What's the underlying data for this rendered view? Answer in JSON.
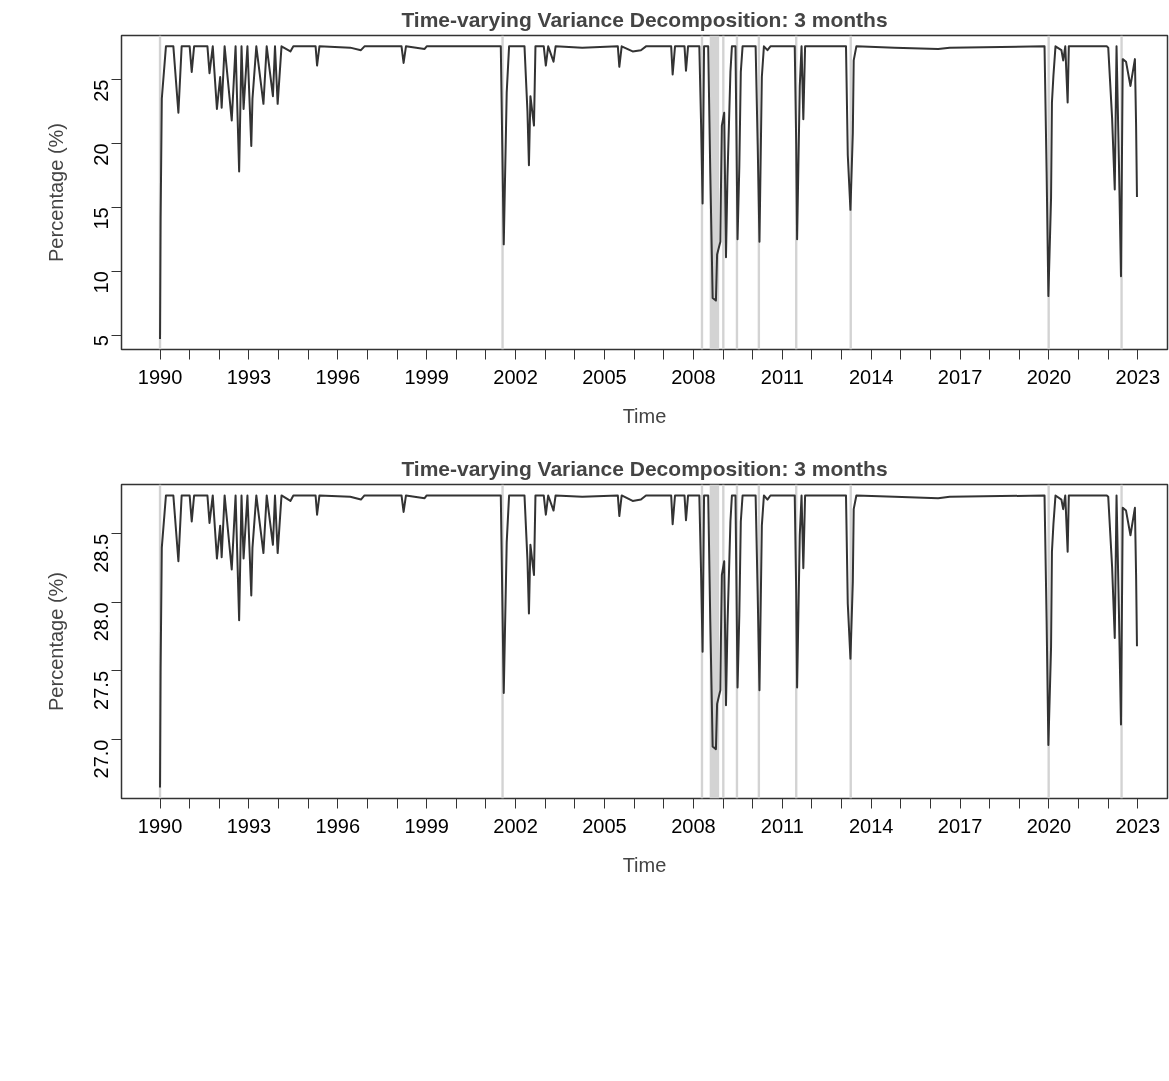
{
  "chart_data": [
    {
      "type": "line",
      "title": "Time-varying Variance Decomposition: 3 months",
      "xlabel": "Time",
      "ylabel": "Percentage (%)",
      "x": [
        1990.0,
        1990.02,
        1990.06,
        1990.2,
        1990.45,
        1990.62,
        1990.73,
        1991.0,
        1991.07,
        1991.15,
        1991.6,
        1991.67,
        1991.78,
        1991.92,
        1992.03,
        1992.08,
        1992.18,
        1992.42,
        1992.55,
        1992.67,
        1992.75,
        1992.82,
        1992.95,
        1993.08,
        1993.12,
        1993.25,
        1993.49,
        1993.6,
        1993.81,
        1993.88,
        1993.97,
        1994.1,
        1994.4,
        1994.5,
        1995.25,
        1995.3,
        1995.38,
        1996.42,
        1996.78,
        1996.9,
        1998.15,
        1998.22,
        1998.3,
        1998.93,
        1999.0,
        2001.5,
        2001.55,
        2001.6,
        2001.7,
        2001.78,
        2002.3,
        2002.4,
        2002.45,
        2002.5,
        2002.62,
        2002.67,
        2002.95,
        2003.02,
        2003.1,
        2003.28,
        2003.35,
        2004.25,
        2005.45,
        2005.5,
        2005.58,
        2005.95,
        2006.23,
        2006.4,
        2007.25,
        2007.3,
        2007.38,
        2007.7,
        2007.75,
        2007.82,
        2008.2,
        2008.26,
        2008.31,
        2008.36,
        2008.5,
        2008.57,
        2008.65,
        2008.76,
        2008.8,
        2008.91,
        2008.93,
        2008.96,
        2009.04,
        2009.1,
        2009.15,
        2009.25,
        2009.3,
        2009.42,
        2009.49,
        2009.55,
        2009.6,
        2009.66,
        2010.1,
        2010.17,
        2010.23,
        2010.31,
        2010.38,
        2010.5,
        2010.6,
        2011.42,
        2011.47,
        2011.5,
        2011.59,
        2011.65,
        2011.71,
        2011.77,
        2013.15,
        2013.21,
        2013.3,
        2013.38,
        2013.41,
        2013.5,
        2014.79,
        2016.26,
        2016.65,
        2019.85,
        2019.92,
        2019.98,
        2020.07,
        2020.1,
        2020.15,
        2020.22,
        2020.42,
        2020.48,
        2020.55,
        2020.63,
        2020.67,
        2021.95,
        2022.0,
        2022.13,
        2022.22,
        2022.28,
        2022.36,
        2022.43,
        2022.49,
        2022.6,
        2022.75,
        2022.9,
        2022.94,
        2022.97
      ],
      "series": [
        {
          "color": "#333333",
          "values": [
            4.7,
            14.1,
            23.5,
            27.6,
            27.6,
            22.4,
            27.6,
            27.6,
            25.6,
            27.6,
            27.6,
            25.5,
            27.6,
            22.7,
            25.2,
            22.8,
            27.6,
            21.8,
            27.6,
            17.8,
            27.6,
            22.7,
            27.6,
            19.8,
            23.5,
            27.6,
            23.1,
            27.6,
            23.7,
            27.6,
            23.1,
            27.6,
            27.2,
            27.6,
            27.6,
            26.1,
            27.6,
            27.5,
            27.3,
            27.6,
            27.6,
            26.3,
            27.6,
            27.4,
            27.6,
            27.6,
            19.9,
            12.1,
            24.0,
            27.6,
            27.6,
            22.5,
            18.3,
            23.7,
            21.4,
            27.6,
            27.6,
            26.1,
            27.6,
            26.4,
            27.6,
            27.5,
            27.6,
            26.0,
            27.6,
            27.2,
            27.3,
            27.6,
            27.6,
            25.4,
            27.6,
            27.6,
            25.7,
            27.6,
            27.6,
            21.5,
            15.3,
            27.6,
            27.6,
            17.7,
            7.9,
            7.7,
            11.3,
            12.3,
            16.4,
            21.4,
            22.4,
            11.1,
            17.4,
            25.6,
            27.6,
            27.6,
            12.5,
            18.2,
            25.6,
            27.6,
            27.6,
            19.9,
            12.3,
            25.2,
            27.6,
            27.3,
            27.6,
            27.6,
            20.0,
            12.5,
            24.5,
            27.6,
            21.9,
            27.6,
            27.6,
            19.1,
            14.8,
            20.8,
            26.5,
            27.6,
            27.5,
            27.4,
            27.5,
            27.6,
            17.8,
            8.05,
            15.7,
            23.2,
            25.3,
            27.6,
            27.3,
            26.5,
            27.6,
            23.2,
            27.6,
            27.6,
            27.5,
            22.0,
            16.4,
            27.6,
            18.6,
            9.6,
            26.6,
            26.4,
            24.5,
            26.6,
            21.4,
            15.8
          ]
        }
      ],
      "xlim": [
        1988.7,
        2024.0
      ],
      "ylim": [
        3.87,
        28.45
      ],
      "xticks": [
        1990,
        {
          "value": 1991,
          "label": null
        },
        {
          "value": 1992,
          "label": null
        },
        1993,
        {
          "value": 1994,
          "label": null
        },
        {
          "value": 1995,
          "label": null
        },
        1996,
        {
          "value": 1997,
          "label": null
        },
        {
          "value": 1998,
          "label": null
        },
        1999,
        {
          "value": 2000,
          "label": null
        },
        {
          "value": 2001,
          "label": null
        },
        2002,
        {
          "value": 2003,
          "label": null
        },
        {
          "value": 2004,
          "label": null
        },
        2005,
        {
          "value": 2006,
          "label": null
        },
        {
          "value": 2007,
          "label": null
        },
        2008,
        {
          "value": 2009,
          "label": null
        },
        {
          "value": 2010,
          "label": null
        },
        2011,
        {
          "value": 2012,
          "label": null
        },
        {
          "value": 2013,
          "label": null
        },
        2014,
        {
          "value": 2015,
          "label": null
        },
        {
          "value": 2016,
          "label": null
        },
        2017,
        {
          "value": 2018,
          "label": null
        },
        {
          "value": 2019,
          "label": null
        },
        2020,
        {
          "value": 2021,
          "label": null
        },
        {
          "value": 2022,
          "label": null
        },
        2023
      ],
      "yticks": [
        5,
        10,
        15,
        20,
        25
      ],
      "bands": [
        {
          "axis": "x",
          "from": 1989.96,
          "to": 1990.04,
          "color": "#d3d3d3"
        },
        {
          "axis": "x",
          "from": 2001.52,
          "to": 2001.6,
          "color": "#d3d3d3"
        },
        {
          "axis": "x",
          "from": 2008.25,
          "to": 2008.33,
          "color": "#d3d3d3"
        },
        {
          "axis": "x",
          "from": 2008.55,
          "to": 2008.87,
          "color": "#d3d3d3"
        },
        {
          "axis": "x",
          "from": 2008.97,
          "to": 2009.05,
          "color": "#d3d3d3"
        },
        {
          "axis": "x",
          "from": 2009.43,
          "to": 2009.51,
          "color": "#d3d3d3"
        },
        {
          "axis": "x",
          "from": 2010.17,
          "to": 2010.25,
          "color": "#d3d3d3"
        },
        {
          "axis": "x",
          "from": 2011.43,
          "to": 2011.51,
          "color": "#d3d3d3"
        },
        {
          "axis": "x",
          "from": 2013.27,
          "to": 2013.35,
          "color": "#d3d3d3"
        },
        {
          "axis": "x",
          "from": 2019.95,
          "to": 2020.03,
          "color": "#d3d3d3"
        },
        {
          "axis": "x",
          "from": 2022.41,
          "to": 2022.49,
          "color": "#d3d3d3"
        }
      ],
      "grid": false,
      "line_style": "solid"
    },
    {
      "type": "line",
      "title": "Time-varying Variance Decomposition: 3 months",
      "xlabel": "Time",
      "ylabel": "Percentage (%)",
      "x": [
        1990.0,
        1990.02,
        1990.06,
        1990.2,
        1990.45,
        1990.62,
        1990.73,
        1991.0,
        1991.07,
        1991.15,
        1991.6,
        1991.67,
        1991.78,
        1991.92,
        1992.03,
        1992.08,
        1992.18,
        1992.42,
        1992.55,
        1992.67,
        1992.75,
        1992.82,
        1992.95,
        1993.08,
        1993.12,
        1993.25,
        1993.49,
        1993.6,
        1993.81,
        1993.88,
        1993.97,
        1994.1,
        1994.4,
        1994.5,
        1995.25,
        1995.3,
        1995.38,
        1996.42,
        1996.78,
        1996.9,
        1998.15,
        1998.22,
        1998.3,
        1998.93,
        1999.0,
        2001.5,
        2001.55,
        2001.6,
        2001.7,
        2001.78,
        2002.3,
        2002.4,
        2002.45,
        2002.5,
        2002.62,
        2002.67,
        2002.95,
        2003.02,
        2003.1,
        2003.28,
        2003.35,
        2004.25,
        2005.45,
        2005.5,
        2005.58,
        2005.95,
        2006.23,
        2006.4,
        2007.25,
        2007.3,
        2007.38,
        2007.7,
        2007.75,
        2007.82,
        2008.2,
        2008.26,
        2008.31,
        2008.36,
        2008.5,
        2008.57,
        2008.65,
        2008.76,
        2008.8,
        2008.91,
        2008.93,
        2008.96,
        2009.04,
        2009.1,
        2009.15,
        2009.25,
        2009.3,
        2009.42,
        2009.49,
        2009.55,
        2009.6,
        2009.66,
        2010.1,
        2010.17,
        2010.23,
        2010.31,
        2010.38,
        2010.5,
        2010.6,
        2011.42,
        2011.47,
        2011.5,
        2011.59,
        2011.65,
        2011.71,
        2011.77,
        2013.15,
        2013.21,
        2013.3,
        2013.38,
        2013.41,
        2013.5,
        2014.79,
        2016.26,
        2016.65,
        2019.85,
        2019.92,
        2019.98,
        2020.07,
        2020.1,
        2020.15,
        2020.22,
        2020.42,
        2020.48,
        2020.55,
        2020.63,
        2020.67,
        2021.95,
        2022.0,
        2022.13,
        2022.22,
        2022.28,
        2022.36,
        2022.43,
        2022.49,
        2022.6,
        2022.75,
        2022.9,
        2022.94,
        2022.97
      ],
      "series": [
        {
          "color": "#333333",
          "values": [
            26.65,
            27.52,
            28.4,
            28.78,
            28.78,
            28.3,
            28.78,
            28.78,
            28.59,
            28.78,
            28.78,
            28.58,
            28.78,
            28.32,
            28.56,
            28.33,
            28.78,
            28.24,
            28.78,
            27.87,
            28.78,
            28.32,
            28.78,
            28.05,
            28.4,
            28.78,
            28.36,
            28.78,
            28.42,
            28.78,
            28.36,
            28.78,
            28.74,
            28.78,
            28.78,
            28.64,
            28.78,
            28.77,
            28.75,
            28.78,
            28.78,
            28.66,
            28.78,
            28.76,
            28.78,
            28.78,
            28.06,
            27.34,
            28.44,
            28.78,
            28.78,
            28.31,
            27.92,
            28.42,
            28.2,
            28.78,
            28.78,
            28.64,
            28.78,
            28.67,
            28.78,
            28.77,
            28.78,
            28.63,
            28.78,
            28.74,
            28.75,
            28.78,
            28.78,
            28.57,
            28.78,
            28.78,
            28.6,
            28.78,
            28.78,
            28.21,
            27.64,
            28.78,
            28.78,
            27.86,
            26.95,
            26.93,
            27.26,
            27.36,
            27.74,
            28.2,
            28.3,
            27.25,
            27.83,
            28.59,
            28.78,
            28.78,
            27.38,
            27.91,
            28.59,
            28.78,
            28.78,
            28.06,
            27.36,
            28.56,
            28.78,
            28.75,
            28.78,
            28.78,
            28.07,
            27.38,
            28.49,
            28.78,
            28.25,
            28.78,
            28.78,
            27.99,
            27.59,
            28.15,
            28.68,
            28.78,
            28.77,
            28.76,
            28.77,
            28.78,
            27.87,
            26.96,
            27.67,
            28.37,
            28.57,
            28.78,
            28.75,
            28.68,
            28.78,
            28.37,
            28.78,
            28.78,
            28.77,
            28.26,
            27.74,
            28.78,
            27.94,
            27.11,
            28.69,
            28.67,
            28.49,
            28.69,
            28.2,
            27.68
          ]
        }
      ],
      "xlim": [
        1988.7,
        2024.0
      ],
      "ylim": [
        26.57,
        28.86
      ],
      "xticks": [
        1990,
        {
          "value": 1991,
          "label": null
        },
        {
          "value": 1992,
          "label": null
        },
        1993,
        {
          "value": 1994,
          "label": null
        },
        {
          "value": 1995,
          "label": null
        },
        1996,
        {
          "value": 1997,
          "label": null
        },
        {
          "value": 1998,
          "label": null
        },
        1999,
        {
          "value": 2000,
          "label": null
        },
        {
          "value": 2001,
          "label": null
        },
        2002,
        {
          "value": 2003,
          "label": null
        },
        {
          "value": 2004,
          "label": null
        },
        2005,
        {
          "value": 2006,
          "label": null
        },
        {
          "value": 2007,
          "label": null
        },
        2008,
        {
          "value": 2009,
          "label": null
        },
        {
          "value": 2010,
          "label": null
        },
        2011,
        {
          "value": 2012,
          "label": null
        },
        {
          "value": 2013,
          "label": null
        },
        2014,
        {
          "value": 2015,
          "label": null
        },
        {
          "value": 2016,
          "label": null
        },
        2017,
        {
          "value": 2018,
          "label": null
        },
        {
          "value": 2019,
          "label": null
        },
        2020,
        {
          "value": 2021,
          "label": null
        },
        {
          "value": 2022,
          "label": null
        },
        2023
      ],
      "yticks": [
        {
          "value": 27,
          "label": "27.0"
        },
        {
          "value": 27.5,
          "label": "27.5"
        },
        {
          "value": 28,
          "label": "28.0"
        },
        {
          "value": 28.5,
          "label": "28.5"
        }
      ],
      "bands": [
        {
          "axis": "x",
          "from": 1989.96,
          "to": 1990.04,
          "color": "#d3d3d3"
        },
        {
          "axis": "x",
          "from": 2001.52,
          "to": 2001.6,
          "color": "#d3d3d3"
        },
        {
          "axis": "x",
          "from": 2008.25,
          "to": 2008.33,
          "color": "#d3d3d3"
        },
        {
          "axis": "x",
          "from": 2008.55,
          "to": 2008.87,
          "color": "#d3d3d3"
        },
        {
          "axis": "x",
          "from": 2008.97,
          "to": 2009.05,
          "color": "#d3d3d3"
        },
        {
          "axis": "x",
          "from": 2009.43,
          "to": 2009.51,
          "color": "#d3d3d3"
        },
        {
          "axis": "x",
          "from": 2010.17,
          "to": 2010.25,
          "color": "#d3d3d3"
        },
        {
          "axis": "x",
          "from": 2011.43,
          "to": 2011.51,
          "color": "#d3d3d3"
        },
        {
          "axis": "x",
          "from": 2013.27,
          "to": 2013.35,
          "color": "#d3d3d3"
        },
        {
          "axis": "x",
          "from": 2019.95,
          "to": 2020.03,
          "color": "#d3d3d3"
        },
        {
          "axis": "x",
          "from": 2022.41,
          "to": 2022.49,
          "color": "#d3d3d3"
        }
      ],
      "grid": false,
      "line_style": "solid"
    }
  ]
}
